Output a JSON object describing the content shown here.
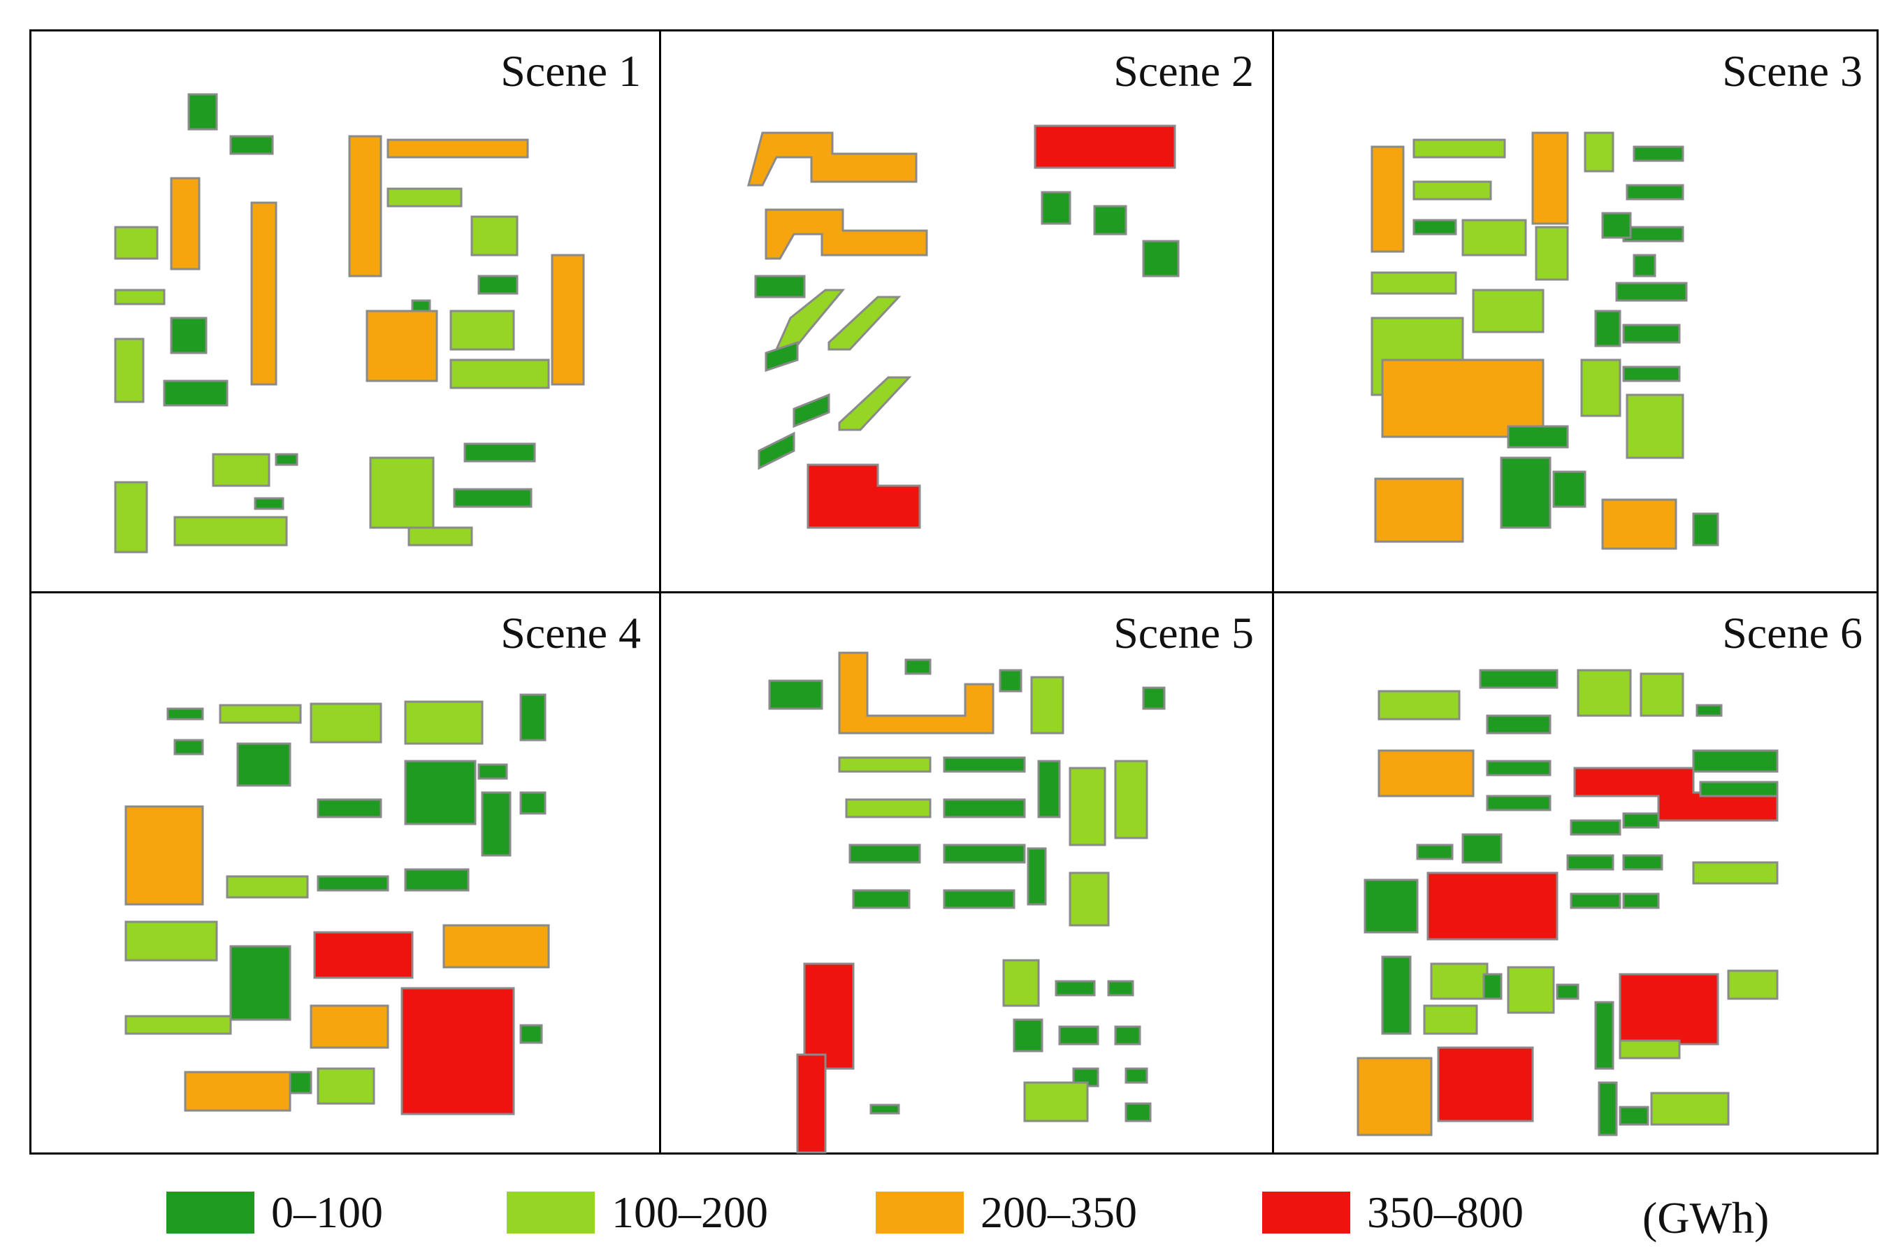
{
  "colors": {
    "class_0_100": "#1e9b20",
    "class_100_200": "#95d624",
    "class_200_350": "#f7a50f",
    "class_350_800": "#ef1310",
    "outline": "#8a8a8a"
  },
  "scenes": [
    {
      "id": "scene-1",
      "title": "Scene 1"
    },
    {
      "id": "scene-2",
      "title": "Scene 2"
    },
    {
      "id": "scene-3",
      "title": "Scene 3"
    },
    {
      "id": "scene-4",
      "title": "Scene 4"
    },
    {
      "id": "scene-5",
      "title": "Scene 5"
    },
    {
      "id": "scene-6",
      "title": "Scene 6"
    }
  ],
  "legend": {
    "items": [
      {
        "label": "0–100",
        "color_key": "class_0_100"
      },
      {
        "label": "100–200",
        "color_key": "class_100_200"
      },
      {
        "label": "200–350",
        "color_key": "class_200_350"
      },
      {
        "label": "350–800",
        "color_key": "class_350_800"
      }
    ],
    "unit": "(GWh)"
  }
}
